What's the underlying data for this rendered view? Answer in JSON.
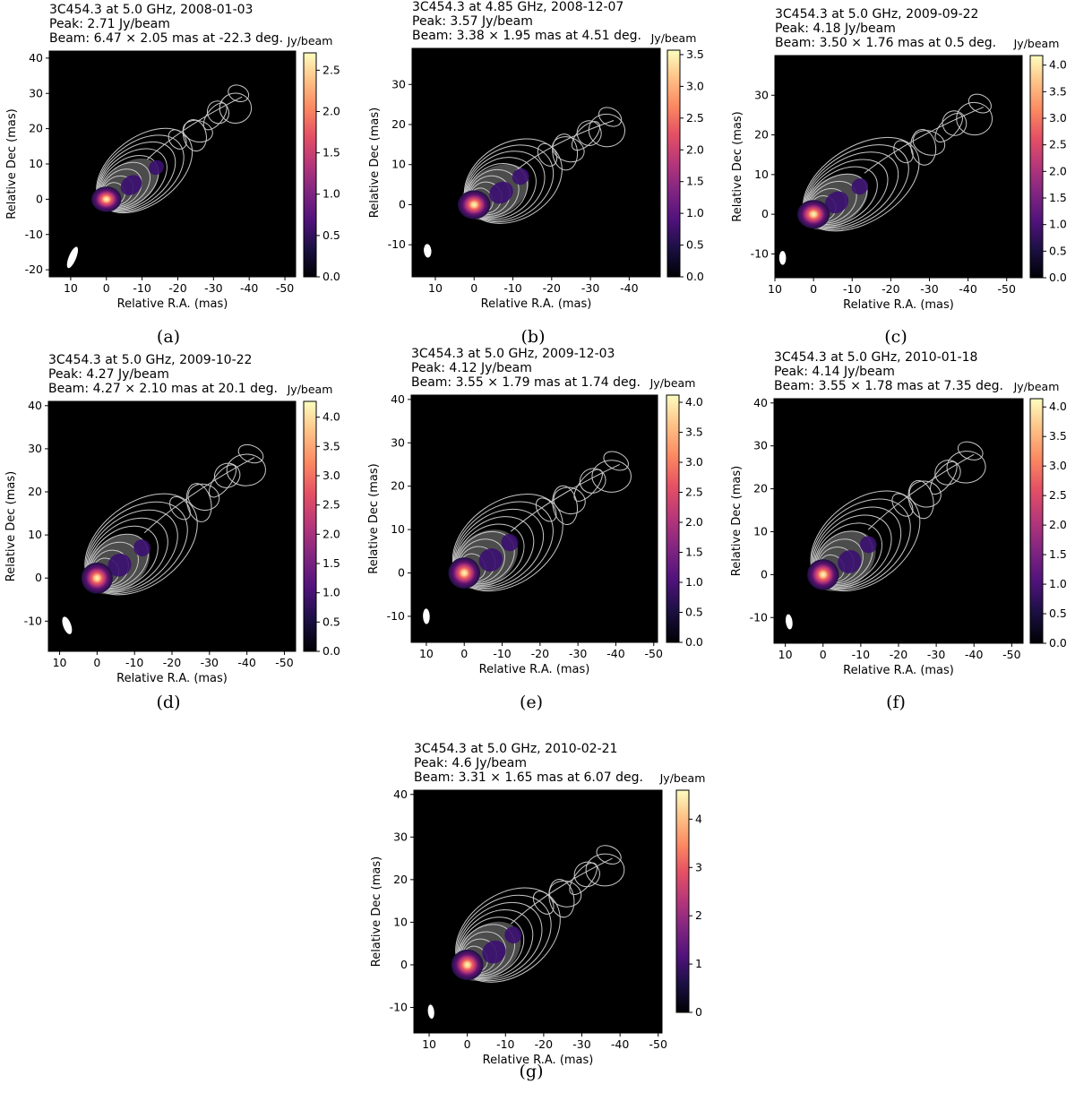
{
  "chart_data": [
    {
      "type": "heatmap",
      "panel_label": "(a)",
      "title_lines": [
        "3C454.3 at 5.0 GHz, 2008-01-03",
        "Peak: 2.71 Jy/beam",
        "Beam: 6.47 × 2.05 mas at -22.3 deg."
      ],
      "xlabel": "Relative R.A. (mas)",
      "ylabel": "Relative Dec (mas)",
      "colorbar_label": "Jy/beam",
      "xlim": [
        16,
        -53
      ],
      "ylim": [
        -22,
        42
      ],
      "xticks": [
        10,
        0,
        -10,
        -20,
        -30,
        -40,
        -50
      ],
      "xtick_labels": [
        "10",
        "0",
        "-10",
        "-20",
        "-30",
        "-40",
        "-50"
      ],
      "yticks": [
        -20,
        -10,
        0,
        10,
        20,
        30,
        40
      ],
      "ytick_labels": [
        "-20",
        "-10",
        "0",
        "10",
        "20",
        "30",
        "40"
      ],
      "cbar_max": 2.71,
      "cbar_ticks": [
        0,
        0.5,
        1.0,
        1.5,
        2.0,
        2.5
      ],
      "cbar_tick_labels": [
        "0.0",
        "0.5",
        "1.0",
        "1.5",
        "2.0",
        "2.5"
      ],
      "beam": {
        "x": 9.5,
        "y": -16.5,
        "major": 6.47,
        "minor": 2.05,
        "pa_deg": -22.3
      },
      "peak": {
        "x": 0,
        "y": 0,
        "value": 2.71
      },
      "knots": [
        {
          "x": -7,
          "y": 4
        },
        {
          "x": -14,
          "y": 9
        }
      ],
      "jet_end": {
        "x": -38,
        "y": 29
      },
      "colormap": "magma",
      "contour_color": "#c8c8c8"
    },
    {
      "type": "heatmap",
      "panel_label": "(b)",
      "title_lines": [
        "3C454.3 at 4.85 GHz, 2008-12-07",
        "Peak: 3.57 Jy/beam",
        "Beam: 3.38 × 1.95 mas at 4.51 deg."
      ],
      "xlabel": "Relative R.A. (mas)",
      "ylabel": "Relative Dec (mas)",
      "colorbar_label": "Jy/beam",
      "xlim": [
        16,
        -48
      ],
      "ylim": [
        -18,
        39
      ],
      "xticks": [
        10,
        0,
        -10,
        -20,
        -30,
        -40
      ],
      "xtick_labels": [
        "10",
        "0",
        "-10",
        "-20",
        "-30",
        "-40"
      ],
      "yticks": [
        -10,
        0,
        10,
        20,
        30
      ],
      "ytick_labels": [
        "-10",
        "0",
        "10",
        "20",
        "30"
      ],
      "cbar_max": 3.57,
      "cbar_ticks": [
        0,
        0.5,
        1.0,
        1.5,
        2.0,
        2.5,
        3.0,
        3.5
      ],
      "cbar_tick_labels": [
        "0.0",
        "0.5",
        "1.0",
        "1.5",
        "2.0",
        "2.5",
        "3.0",
        "3.5"
      ],
      "beam": {
        "x": 12,
        "y": -11.5,
        "major": 3.38,
        "minor": 1.95,
        "pa_deg": 4.51
      },
      "peak": {
        "x": 0,
        "y": 0,
        "value": 3.57
      },
      "knots": [
        {
          "x": -7,
          "y": 3
        },
        {
          "x": -12,
          "y": 7
        }
      ],
      "jet_end": {
        "x": -36,
        "y": 21
      },
      "colormap": "magma",
      "contour_color": "#c8c8c8"
    },
    {
      "type": "heatmap",
      "panel_label": "(c)",
      "title_lines": [
        "3C454.3 at 5.0 GHz, 2009-09-22",
        "Peak: 4.18 Jy/beam",
        "Beam: 3.50 × 1.76 mas at 0.5 deg."
      ],
      "xlabel": "Relative R.A. (mas)",
      "ylabel": "Relative Dec (mas)",
      "colorbar_label": "Jy/beam",
      "xlim": [
        10,
        -54
      ],
      "ylim": [
        -16,
        40
      ],
      "xticks": [
        10,
        0,
        -10,
        -20,
        -30,
        -40,
        -50
      ],
      "xtick_labels": [
        "10",
        "0",
        "-10",
        "-20",
        "-30",
        "-40",
        "-50"
      ],
      "yticks": [
        -10,
        0,
        10,
        20,
        30
      ],
      "ytick_labels": [
        "-10",
        "0",
        "10",
        "20",
        "30"
      ],
      "cbar_max": 4.18,
      "cbar_ticks": [
        0,
        0.5,
        1.0,
        1.5,
        2.0,
        2.5,
        3.0,
        3.5,
        4.0
      ],
      "cbar_tick_labels": [
        "0.0",
        "0.5",
        "1.0",
        "1.5",
        "2.0",
        "2.5",
        "3.0",
        "3.5",
        "4.0"
      ],
      "beam": {
        "x": 8,
        "y": -11,
        "major": 3.5,
        "minor": 1.76,
        "pa_deg": 0.5
      },
      "peak": {
        "x": 0,
        "y": 0,
        "value": 4.18
      },
      "knots": [
        {
          "x": -6,
          "y": 3
        },
        {
          "x": -12,
          "y": 7
        }
      ],
      "jet_end": {
        "x": -44,
        "y": 27
      },
      "colormap": "magma",
      "contour_color": "#c8c8c8"
    },
    {
      "type": "heatmap",
      "panel_label": "(d)",
      "title_lines": [
        "3C454.3 at 5.0 GHz, 2009-10-22",
        "Peak: 4.27 Jy/beam",
        "Beam: 4.27 × 2.10 mas at 20.1 deg."
      ],
      "xlabel": "Relative R.A. (mas)",
      "ylabel": "Relative Dec (mas)",
      "colorbar_label": "Jy/beam",
      "xlim": [
        13,
        -53
      ],
      "ylim": [
        -17,
        41
      ],
      "xticks": [
        10,
        0,
        -10,
        -20,
        -30,
        -40,
        -50
      ],
      "xtick_labels": [
        "10",
        "0",
        "-10",
        "-20",
        "-30",
        "-40",
        "-50"
      ],
      "yticks": [
        -10,
        0,
        10,
        20,
        30,
        40
      ],
      "ytick_labels": [
        "-10",
        "0",
        "10",
        "20",
        "30",
        "40"
      ],
      "cbar_max": 4.27,
      "cbar_ticks": [
        0,
        0.5,
        1.0,
        1.5,
        2.0,
        2.5,
        3.0,
        3.5,
        4.0
      ],
      "cbar_tick_labels": [
        "0.0",
        "0.5",
        "1.0",
        "1.5",
        "2.0",
        "2.5",
        "3.0",
        "3.5",
        "4.0"
      ],
      "beam": {
        "x": 8,
        "y": -11,
        "major": 4.27,
        "minor": 2.1,
        "pa_deg": 20.1
      },
      "peak": {
        "x": 0,
        "y": 0,
        "value": 4.27
      },
      "knots": [
        {
          "x": -6,
          "y": 3
        },
        {
          "x": -12,
          "y": 7
        }
      ],
      "jet_end": {
        "x": -42,
        "y": 28
      },
      "colormap": "magma",
      "contour_color": "#c8c8c8"
    },
    {
      "type": "heatmap",
      "panel_label": "(e)",
      "title_lines": [
        "3C454.3 at 5.0 GHz, 2009-12-03",
        "Peak: 4.12 Jy/beam",
        "Beam: 3.55 × 1.79 mas at 1.74 deg."
      ],
      "xlabel": "Relative R.A. (mas)",
      "ylabel": "Relative Dec (mas)",
      "colorbar_label": "Jy/beam",
      "xlim": [
        14,
        -51
      ],
      "ylim": [
        -16,
        41
      ],
      "xticks": [
        10,
        0,
        -10,
        -20,
        -30,
        -40,
        -50
      ],
      "xtick_labels": [
        "10",
        "0",
        "-10",
        "-20",
        "-30",
        "-40",
        "-50"
      ],
      "yticks": [
        -10,
        0,
        10,
        20,
        30,
        40
      ],
      "ytick_labels": [
        "-10",
        "0",
        "10",
        "20",
        "30",
        "40"
      ],
      "cbar_max": 4.12,
      "cbar_ticks": [
        0,
        0.5,
        1.0,
        1.5,
        2.0,
        2.5,
        3.0,
        3.5,
        4.0
      ],
      "cbar_tick_labels": [
        "0.0",
        "0.5",
        "1.0",
        "1.5",
        "2.0",
        "2.5",
        "3.0",
        "3.5",
        "4.0"
      ],
      "beam": {
        "x": 10,
        "y": -10,
        "major": 3.55,
        "minor": 1.79,
        "pa_deg": 1.74
      },
      "peak": {
        "x": 0,
        "y": 0,
        "value": 4.12
      },
      "knots": [
        {
          "x": -7,
          "y": 3
        },
        {
          "x": -12,
          "y": 7
        }
      ],
      "jet_end": {
        "x": -41,
        "y": 25
      },
      "colormap": "magma",
      "contour_color": "#c8c8c8"
    },
    {
      "type": "heatmap",
      "panel_label": "(f)",
      "title_lines": [
        "3C454.3 at 5.0 GHz, 2010-01-18",
        "Peak: 4.14 Jy/beam",
        "Beam: 3.55 × 1.78 mas at 7.35 deg."
      ],
      "xlabel": "Relative R.A. (mas)",
      "ylabel": "Relative Dec (mas)",
      "colorbar_label": "Jy/beam",
      "xlim": [
        13,
        -53
      ],
      "ylim": [
        -16,
        41
      ],
      "xticks": [
        10,
        0,
        -10,
        -20,
        -30,
        -40,
        -50
      ],
      "xtick_labels": [
        "10",
        "0",
        "-10",
        "-20",
        "-30",
        "-40",
        "-50"
      ],
      "yticks": [
        -10,
        0,
        10,
        20,
        30,
        40
      ],
      "ytick_labels": [
        "-10",
        "0",
        "10",
        "20",
        "30",
        "40"
      ],
      "cbar_max": 4.14,
      "cbar_ticks": [
        0,
        0.5,
        1.0,
        1.5,
        2.0,
        2.5,
        3.0,
        3.5,
        4.0
      ],
      "cbar_tick_labels": [
        "0.0",
        "0.5",
        "1.0",
        "1.5",
        "2.0",
        "2.5",
        "3.0",
        "3.5",
        "4.0"
      ],
      "beam": {
        "x": 9,
        "y": -11,
        "major": 3.55,
        "minor": 1.78,
        "pa_deg": 7.35
      },
      "peak": {
        "x": 0,
        "y": 0,
        "value": 4.14
      },
      "knots": [
        {
          "x": -7,
          "y": 3
        },
        {
          "x": -12,
          "y": 7
        }
      ],
      "jet_end": {
        "x": -40,
        "y": 28
      },
      "colormap": "magma",
      "contour_color": "#c8c8c8"
    },
    {
      "type": "heatmap",
      "panel_label": "(g)",
      "title_lines": [
        "3C454.3 at 5.0 GHz, 2010-02-21",
        "Peak: 4.6 Jy/beam",
        "Beam: 3.31 × 1.65 mas at 6.07 deg."
      ],
      "xlabel": "Relative R.A. (mas)",
      "ylabel": "Relative Dec (mas)",
      "colorbar_label": "Jy/beam",
      "xlim": [
        14,
        -51
      ],
      "ylim": [
        -16,
        41
      ],
      "xticks": [
        10,
        0,
        -10,
        -20,
        -30,
        -40,
        -50
      ],
      "xtick_labels": [
        "10",
        "0",
        "-10",
        "-20",
        "-30",
        "-40",
        "-50"
      ],
      "yticks": [
        -10,
        0,
        10,
        20,
        30,
        40
      ],
      "ytick_labels": [
        "-10",
        "0",
        "10",
        "20",
        "30",
        "40"
      ],
      "cbar_max": 4.6,
      "cbar_ticks": [
        0,
        1,
        2,
        3,
        4
      ],
      "cbar_tick_labels": [
        "0",
        "1",
        "2",
        "3",
        "4"
      ],
      "beam": {
        "x": 9.5,
        "y": -11,
        "major": 3.31,
        "minor": 1.65,
        "pa_deg": 6.07
      },
      "peak": {
        "x": 0,
        "y": 0,
        "value": 4.6
      },
      "knots": [
        {
          "x": -7,
          "y": 3
        },
        {
          "x": -12,
          "y": 7
        }
      ],
      "jet_end": {
        "x": -38,
        "y": 25
      },
      "colormap": "magma",
      "contour_color": "#c8c8c8"
    }
  ]
}
